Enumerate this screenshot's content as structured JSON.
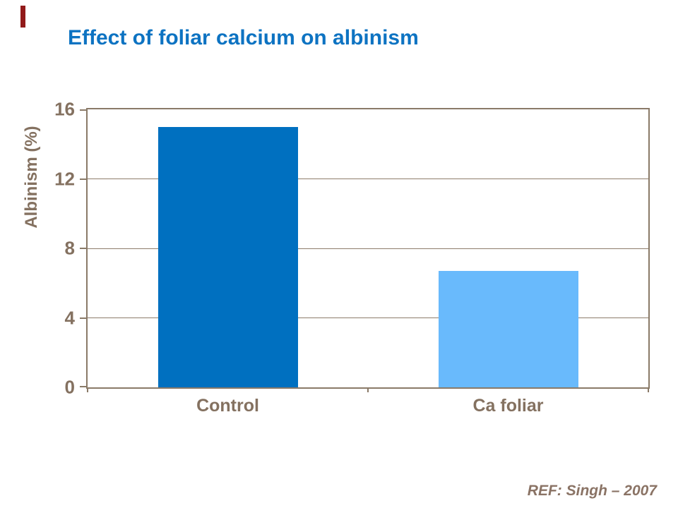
{
  "slide": {
    "title": "Effect of foliar calcium on albinism",
    "reference": "REF: Singh – 2007"
  },
  "chart_data": {
    "type": "bar",
    "categories": [
      "Control",
      "Ca foliar"
    ],
    "values": [
      15,
      6.7
    ],
    "title": "Effect of foliar calcium on albinism",
    "xlabel": "",
    "ylabel": "Albinism (%)",
    "ylim": [
      0,
      16
    ],
    "yticks": [
      0,
      4,
      8,
      12,
      16
    ],
    "grid": true,
    "legend": false,
    "bar_colors": [
      "#0070c0",
      "#69bafc"
    ]
  },
  "colors": {
    "title_text": "#0d73c2",
    "axis_line": "#8a7a68",
    "gridline": "#8d7c6a",
    "axis_text": "#847160",
    "reference_text": "#8a7365",
    "accent_bar": "#921a1a"
  }
}
